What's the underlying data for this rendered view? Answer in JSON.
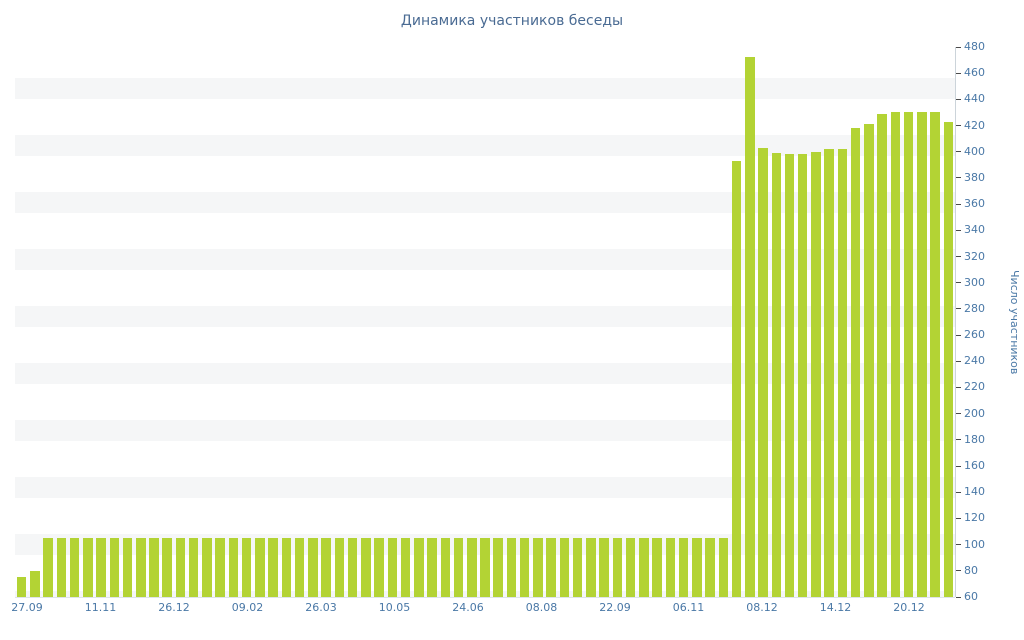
{
  "chart_data": {
    "type": "bar",
    "title": "Динамика участников беседы",
    "ylabel": "Число участников",
    "xlabel": "",
    "ylim": [
      60,
      480
    ],
    "y_tick_step": 20,
    "grid": "horizontal-stripes",
    "legend": "none",
    "y_ticks": [
      60,
      80,
      100,
      120,
      140,
      160,
      180,
      200,
      220,
      240,
      260,
      280,
      300,
      320,
      340,
      360,
      380,
      400,
      420,
      440,
      460,
      480
    ],
    "x_tick_labels": [
      "27.09",
      "11.11",
      "26.12",
      "09.02",
      "26.03",
      "10.05",
      "24.06",
      "08.08",
      "22.09",
      "06.11",
      "08.12",
      "14.12",
      "20.12"
    ],
    "values": [
      75,
      80,
      105,
      105,
      105,
      105,
      105,
      105,
      105,
      105,
      105,
      105,
      105,
      105,
      105,
      105,
      105,
      105,
      105,
      105,
      105,
      105,
      105,
      105,
      105,
      105,
      105,
      105,
      105,
      105,
      105,
      105,
      105,
      105,
      105,
      105,
      105,
      105,
      105,
      105,
      105,
      105,
      105,
      105,
      105,
      105,
      105,
      105,
      105,
      105,
      105,
      105,
      105,
      105,
      393,
      472,
      403,
      399,
      398,
      398,
      400,
      402,
      402,
      418,
      421,
      429,
      430,
      430,
      430,
      430,
      423
    ],
    "bar_color": "#b3d334",
    "label_color": "#4a78a6",
    "title_color": "#4a6b93",
    "stripe_color": "#f5f6f7"
  }
}
